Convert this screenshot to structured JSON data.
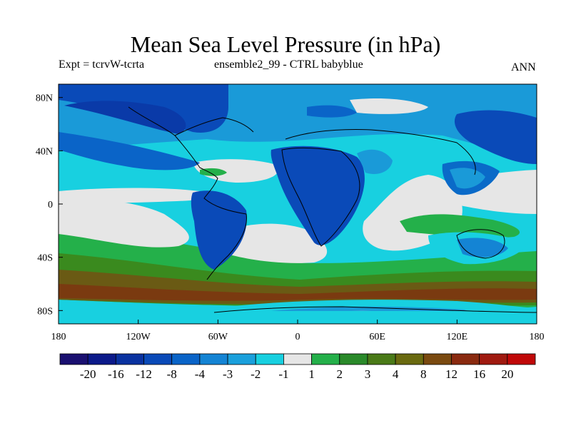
{
  "header": {
    "title": "Mean Sea Level Pressure (in hPa)",
    "expt": "Expt = tcrvW-tcrta",
    "ensemble": "ensemble2_99 - CTRL babyblue",
    "season": "ANN"
  },
  "map": {
    "projection": "cylindrical equidistant",
    "lon_range": [
      -180,
      180
    ],
    "lat_range": [
      -90,
      90
    ],
    "lon_ticks": [
      {
        "lon": -180,
        "label": "180"
      },
      {
        "lon": -120,
        "label": "120W"
      },
      {
        "lon": -60,
        "label": "60W"
      },
      {
        "lon": 0,
        "label": "0"
      },
      {
        "lon": 60,
        "label": "60E"
      },
      {
        "lon": 120,
        "label": "120E"
      },
      {
        "lon": 180,
        "label": "180"
      }
    ],
    "lat_ticks": [
      {
        "lat": 80,
        "label": "80N"
      },
      {
        "lat": 40,
        "label": "40N"
      },
      {
        "lat": 0,
        "label": "0"
      },
      {
        "lat": -40,
        "label": "40S"
      },
      {
        "lat": -80,
        "label": "80S"
      }
    ],
    "field_colors": {
      "strong_low": "#0a3aa8",
      "low": "#0a6ac8",
      "mid_low": "#1a9ad8",
      "weak_low": "#18d0e0",
      "neutral": "#e6e6e6",
      "weak_high": "#24b04a",
      "mid_high": "#3a8a1e",
      "high": "#6a5a14",
      "strong_high": "#7a3a10"
    }
  },
  "colorbar": {
    "colors": [
      "#1a1070",
      "#0c1a8a",
      "#0a32a0",
      "#0a4ab8",
      "#0a64c8",
      "#1484d4",
      "#1aa0dc",
      "#18d0e0",
      "#e6e6e6",
      "#24b04a",
      "#2a8a2a",
      "#4a7a18",
      "#6a6a10",
      "#7a4a10",
      "#8a2a10",
      "#a01a10",
      "#c00808"
    ],
    "labels": [
      "-20",
      "-16",
      "-12",
      "-8",
      "-4",
      "-3",
      "-2",
      "-1",
      "1",
      "2",
      "3",
      "4",
      "8",
      "12",
      "16",
      "20"
    ]
  }
}
